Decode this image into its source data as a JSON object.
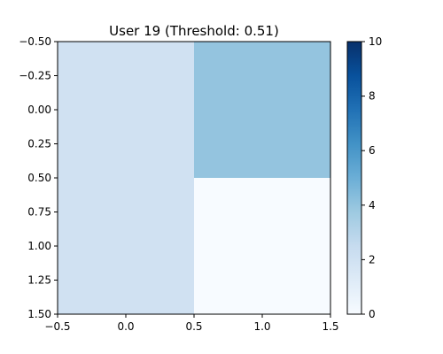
{
  "chart_data": {
    "type": "heatmap",
    "title": "User 19 (Threshold: 0.51)",
    "xlabel": "",
    "ylabel": "",
    "x_centers": [
      0,
      1
    ],
    "y_centers": [
      0,
      1
    ],
    "values": [
      [
        2,
        4
      ],
      [
        2,
        0
      ]
    ],
    "xlim": [
      -0.5,
      1.5
    ],
    "ylim": [
      1.5,
      -0.5
    ],
    "xticks": [
      -0.5,
      0.0,
      0.5,
      1.0,
      1.5
    ],
    "xtick_labels": [
      "−0.5",
      "0.0",
      "0.5",
      "1.0",
      "1.5"
    ],
    "yticks": [
      -0.5,
      -0.25,
      0.0,
      0.25,
      0.5,
      0.75,
      1.0,
      1.25,
      1.5
    ],
    "ytick_labels": [
      "−0.50",
      "−0.25",
      "0.00",
      "0.25",
      "0.50",
      "0.75",
      "1.00",
      "1.25",
      "1.50"
    ],
    "colorbar": {
      "vmin": 0,
      "vmax": 10,
      "ticks": [
        0,
        2,
        4,
        6,
        8,
        10
      ],
      "tick_labels": [
        "0",
        "2",
        "4",
        "6",
        "8",
        "10"
      ]
    },
    "colormap": "Blues",
    "grid": false
  }
}
